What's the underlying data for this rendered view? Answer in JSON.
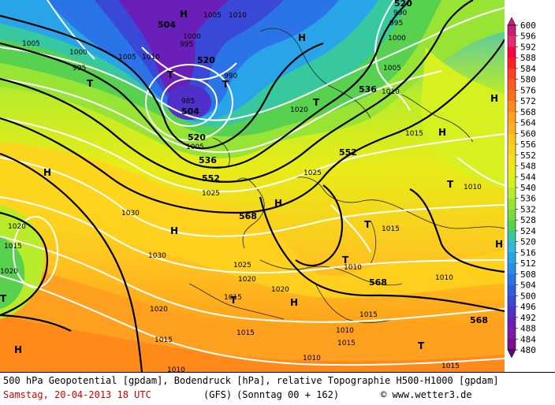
{
  "footer": {
    "description": "500 hPa Geopotential [gpdam], Bodendruck [hPa], relative Topographie H500-H1000 [gpdam]",
    "date": "Samstag, 20-04-2013  18 UTC",
    "model": "(GFS)",
    "forecast": "(Sonntag 00 + 162)",
    "credit": "© www.wetter3.de"
  },
  "legend": {
    "labels": [
      "600",
      "596",
      "592",
      "588",
      "584",
      "580",
      "576",
      "572",
      "568",
      "564",
      "560",
      "556",
      "552",
      "548",
      "544",
      "540",
      "536",
      "532",
      "528",
      "524",
      "520",
      "516",
      "512",
      "508",
      "504",
      "500",
      "496",
      "492",
      "488",
      "484",
      "480"
    ],
    "colors": [
      "#c81e78",
      "#e0306e",
      "#ff0044",
      "#ff1f1f",
      "#ff3f1f",
      "#ff5a1f",
      "#ff6f1a",
      "#ff8a1a",
      "#ffa020",
      "#ffb020",
      "#ffc420",
      "#ffd21e",
      "#f6e21a",
      "#e8ec18",
      "#d6f020",
      "#b8ec2a",
      "#98e434",
      "#78da40",
      "#58d050",
      "#38c8a0",
      "#30b8d8",
      "#2aa4e8",
      "#2a8ce8",
      "#2a74e8",
      "#305ce0",
      "#3a48d8",
      "#5030c8",
      "#6a20b8",
      "#8018a8",
      "#7a1090",
      "#5a0878"
    ]
  },
  "map": {
    "labels": {
      "high": [
        "H",
        "H",
        "H",
        "H",
        "H",
        "H",
        "H",
        "H",
        "H",
        "H"
      ],
      "low": [
        "T",
        "T",
        "T",
        "T",
        "T",
        "T",
        "T",
        "T",
        "T",
        "T"
      ],
      "geopotential": [
        "504",
        "520",
        "504",
        "520",
        "536",
        "552",
        "536",
        "552",
        "568",
        "568",
        "568",
        "520"
      ],
      "pressure": [
        "1005",
        "1010",
        "1000",
        "995",
        "1005",
        "1010",
        "1000",
        "995",
        "990",
        "985",
        "1005",
        "1005",
        "1010",
        "1015",
        "1020",
        "1025",
        "1020",
        "1025",
        "1030",
        "1030",
        "1025",
        "1020",
        "1015",
        "1010",
        "1015",
        "1010",
        "1015",
        "1020",
        "1015",
        "1010",
        "1010",
        "1015",
        "1010",
        "1020",
        "1015",
        "1015",
        "990",
        "995",
        "1000",
        "1005",
        "1010",
        "1015",
        "1020"
      ]
    }
  }
}
